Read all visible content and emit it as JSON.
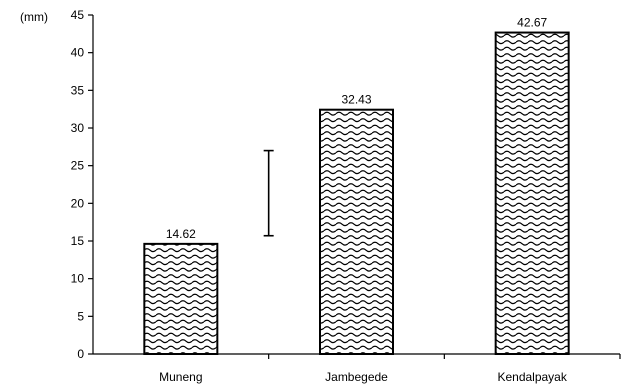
{
  "chart_data": {
    "type": "bar",
    "categories": [
      "Muneng",
      "Jambegede",
      "Kendalpayak"
    ],
    "values": [
      14.62,
      32.43,
      42.67
    ],
    "data_labels": [
      "14.62",
      "32.43",
      "42.67"
    ],
    "ylabel": "(mm)",
    "ylim": [
      0,
      45
    ],
    "yticks": [
      0,
      5,
      10,
      15,
      20,
      25,
      30,
      35,
      40,
      45
    ],
    "error_bar": {
      "low": 15.7,
      "high": 27.0
    },
    "grid": false,
    "legend": "none",
    "bar_pattern": "wavy"
  }
}
